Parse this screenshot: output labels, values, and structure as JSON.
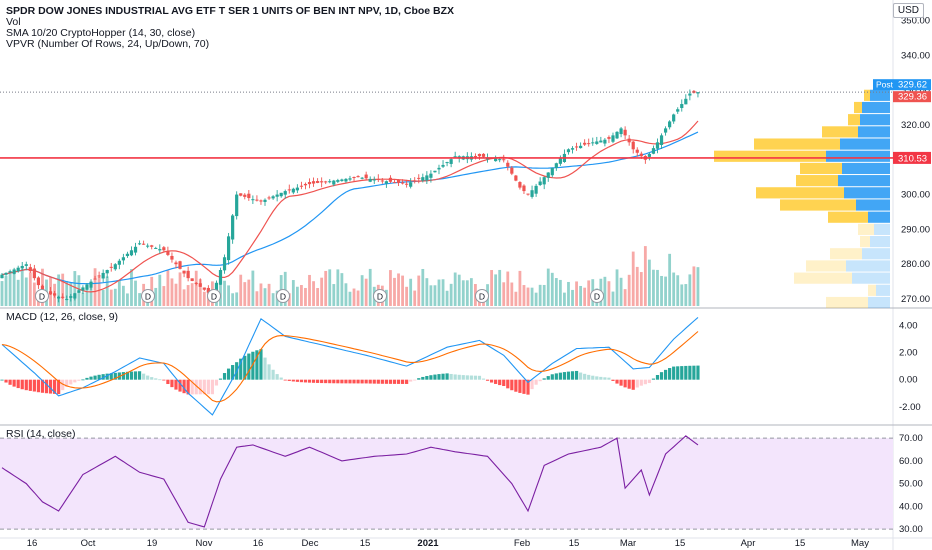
{
  "header": {
    "symbol_line": "SPDR DOW JONES INDUSTRIAL AVG ETF T SER 1 UNITS OF BEN INT NPV, 1D, Cboe BZX",
    "vol_label": "Vol",
    "sma_label": "SMA 10/20 CryptoHopper (14, 30, close)",
    "vpvr_label": "VPVR (Number Of Rows, 24, Up/Down, 70)",
    "macd_label": "MACD (12, 26, close, 9)",
    "rsi_label": "RSI (14, close)",
    "currency": "USD"
  },
  "price_tags": {
    "post_label": "Post",
    "post_value": "329.62",
    "last_value": "329.36",
    "level_value": "310.53"
  },
  "colors": {
    "up": "#26a69a",
    "down": "#ef5350",
    "sma_fast": "#ef5350",
    "sma_slow": "#2196f3",
    "macd": "#2196f3",
    "signal": "#ff6d00",
    "rsi": "#7b1fa2",
    "rsi_band": "#f3e5fc",
    "vpvr_up": "#2196f3",
    "vpvr_down": "#ffc107",
    "level": "#f23645",
    "post_tag": "#2196f3"
  },
  "chart_data": {
    "type": "candlestick",
    "x_tick_labels": [
      "16",
      "Oct",
      "19",
      "Nov",
      "16",
      "Dec",
      "15",
      "2021",
      "Feb",
      "15",
      "Mar",
      "15",
      "Apr",
      "15",
      "May"
    ],
    "price_axis": {
      "ticks": [
        "270.00",
        "280.00",
        "290.00",
        "300.00",
        "310.00",
        "320.00",
        "330.00",
        "340.00",
        "350.00"
      ],
      "range": [
        268,
        353
      ]
    },
    "macd_axis": {
      "ticks": [
        "-2.00",
        "0.00",
        "2.00",
        "4.00"
      ],
      "range": [
        -3.2,
        5.0
      ]
    },
    "rsi_axis": {
      "ticks": [
        "30.00",
        "40.00",
        "50.00",
        "60.00",
        "70.00"
      ],
      "range": [
        27,
        74
      ],
      "band": [
        30,
        70
      ]
    },
    "horizontal_level": 310.53,
    "dividend_markers": [
      "Sep",
      "Oct",
      "Nov",
      "Dec",
      "Jan",
      "Feb",
      "Mar"
    ],
    "dividend_marker_text": "D",
    "price_keypoints": [
      {
        "i": 0,
        "v": 277
      },
      {
        "i": 6,
        "v": 280
      },
      {
        "i": 10,
        "v": 272
      },
      {
        "i": 16,
        "v": 270
      },
      {
        "i": 22,
        "v": 275
      },
      {
        "i": 28,
        "v": 280
      },
      {
        "i": 34,
        "v": 286
      },
      {
        "i": 40,
        "v": 284
      },
      {
        "i": 46,
        "v": 276
      },
      {
        "i": 52,
        "v": 271
      },
      {
        "i": 55,
        "v": 282
      },
      {
        "i": 58,
        "v": 300
      },
      {
        "i": 64,
        "v": 298
      },
      {
        "i": 70,
        "v": 301
      },
      {
        "i": 76,
        "v": 303
      },
      {
        "i": 82,
        "v": 304
      },
      {
        "i": 88,
        "v": 305
      },
      {
        "i": 94,
        "v": 304
      },
      {
        "i": 100,
        "v": 303
      },
      {
        "i": 106,
        "v": 306
      },
      {
        "i": 112,
        "v": 311
      },
      {
        "i": 118,
        "v": 311
      },
      {
        "i": 124,
        "v": 310
      },
      {
        "i": 128,
        "v": 302
      },
      {
        "i": 130,
        "v": 300
      },
      {
        "i": 134,
        "v": 305
      },
      {
        "i": 140,
        "v": 313
      },
      {
        "i": 146,
        "v": 315
      },
      {
        "i": 150,
        "v": 316
      },
      {
        "i": 153,
        "v": 319
      },
      {
        "i": 156,
        "v": 313
      },
      {
        "i": 159,
        "v": 310
      },
      {
        "i": 162,
        "v": 315
      },
      {
        "i": 166,
        "v": 323
      },
      {
        "i": 170,
        "v": 329
      },
      {
        "i": 172,
        "v": 329.4
      }
    ],
    "macd_keypoints": [
      {
        "i": 0,
        "v": 2.6
      },
      {
        "i": 8,
        "v": 0.5
      },
      {
        "i": 14,
        "v": -1.2
      },
      {
        "i": 20,
        "v": -0.6
      },
      {
        "i": 28,
        "v": 0.6
      },
      {
        "i": 34,
        "v": 1.6
      },
      {
        "i": 40,
        "v": 1.2
      },
      {
        "i": 46,
        "v": -1.0
      },
      {
        "i": 52,
        "v": -2.6
      },
      {
        "i": 58,
        "v": 0.6
      },
      {
        "i": 64,
        "v": 4.5
      },
      {
        "i": 70,
        "v": 3.2
      },
      {
        "i": 80,
        "v": 2.5
      },
      {
        "i": 90,
        "v": 1.8
      },
      {
        "i": 100,
        "v": 1.0
      },
      {
        "i": 110,
        "v": 2.4
      },
      {
        "i": 118,
        "v": 2.9
      },
      {
        "i": 124,
        "v": 1.8
      },
      {
        "i": 130,
        "v": -0.2
      },
      {
        "i": 136,
        "v": 1.2
      },
      {
        "i": 142,
        "v": 2.3
      },
      {
        "i": 150,
        "v": 2.4
      },
      {
        "i": 156,
        "v": 0.8
      },
      {
        "i": 160,
        "v": 0.9
      },
      {
        "i": 166,
        "v": 3.0
      },
      {
        "i": 172,
        "v": 4.6
      }
    ],
    "rsi_keypoints": [
      {
        "i": 0,
        "v": 57
      },
      {
        "i": 6,
        "v": 50
      },
      {
        "i": 10,
        "v": 42
      },
      {
        "i": 14,
        "v": 38
      },
      {
        "i": 20,
        "v": 54
      },
      {
        "i": 28,
        "v": 62
      },
      {
        "i": 34,
        "v": 55
      },
      {
        "i": 40,
        "v": 52
      },
      {
        "i": 46,
        "v": 33
      },
      {
        "i": 50,
        "v": 31
      },
      {
        "i": 54,
        "v": 52
      },
      {
        "i": 58,
        "v": 66
      },
      {
        "i": 62,
        "v": 67
      },
      {
        "i": 70,
        "v": 62
      },
      {
        "i": 76,
        "v": 66
      },
      {
        "i": 84,
        "v": 60
      },
      {
        "i": 92,
        "v": 62
      },
      {
        "i": 100,
        "v": 63
      },
      {
        "i": 106,
        "v": 66
      },
      {
        "i": 112,
        "v": 64
      },
      {
        "i": 120,
        "v": 62
      },
      {
        "i": 126,
        "v": 50
      },
      {
        "i": 130,
        "v": 38
      },
      {
        "i": 134,
        "v": 58
      },
      {
        "i": 140,
        "v": 63
      },
      {
        "i": 148,
        "v": 66
      },
      {
        "i": 152,
        "v": 70
      },
      {
        "i": 154,
        "v": 48
      },
      {
        "i": 158,
        "v": 56
      },
      {
        "i": 160,
        "v": 45
      },
      {
        "i": 164,
        "v": 63
      },
      {
        "i": 169,
        "v": 71
      },
      {
        "i": 172,
        "v": 67
      }
    ],
    "vpvr_rows": [
      {
        "price": 328.5,
        "up": 20,
        "down": 6
      },
      {
        "price": 325.0,
        "up": 28,
        "down": 8
      },
      {
        "price": 321.5,
        "up": 30,
        "down": 12
      },
      {
        "price": 318.0,
        "up": 32,
        "down": 36
      },
      {
        "price": 314.5,
        "up": 50,
        "down": 86
      },
      {
        "price": 311.0,
        "up": 64,
        "down": 112
      },
      {
        "price": 307.5,
        "up": 48,
        "down": 42
      },
      {
        "price": 304.0,
        "up": 52,
        "down": 42
      },
      {
        "price": 300.5,
        "up": 46,
        "down": 88
      },
      {
        "price": 297.0,
        "up": 34,
        "down": 76
      },
      {
        "price": 293.5,
        "up": 22,
        "down": 40
      },
      {
        "price": 290.0,
        "up": 16,
        "down": 16
      },
      {
        "price": 286.5,
        "up": 20,
        "down": 10
      },
      {
        "price": 283.0,
        "up": 28,
        "down": 32
      },
      {
        "price": 279.5,
        "up": 44,
        "down": 40
      },
      {
        "price": 276.0,
        "up": 38,
        "down": 58
      },
      {
        "price": 272.5,
        "up": 14,
        "down": 8
      },
      {
        "price": 269.0,
        "up": 22,
        "down": 42
      }
    ]
  }
}
